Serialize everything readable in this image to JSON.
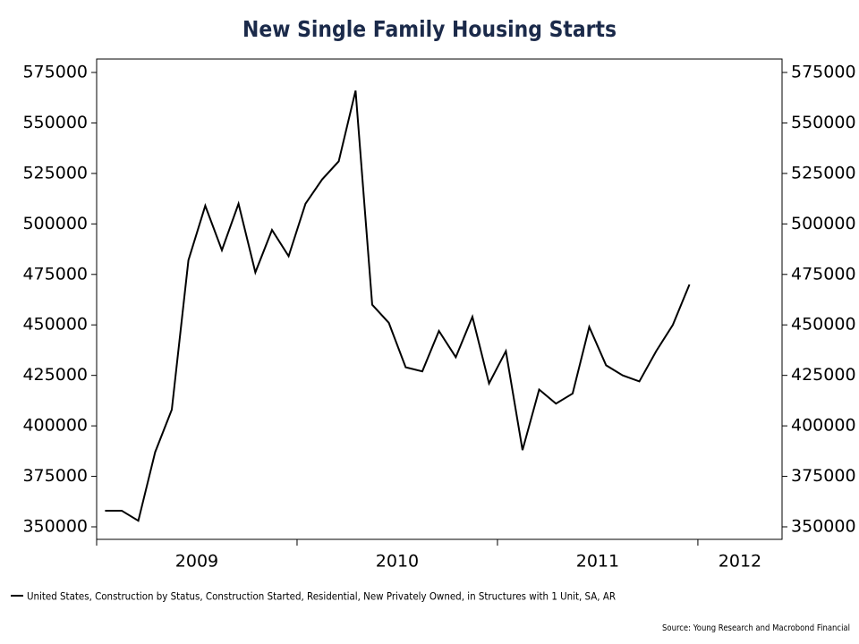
{
  "chart_data": {
    "type": "line",
    "title": "New Single Family Housing Starts",
    "x": [
      2009.042,
      2009.125,
      2009.208,
      2009.292,
      2009.375,
      2009.458,
      2009.542,
      2009.625,
      2009.708,
      2009.792,
      2009.875,
      2009.958,
      2010.042,
      2010.125,
      2010.208,
      2010.292,
      2010.375,
      2010.458,
      2010.542,
      2010.625,
      2010.708,
      2010.792,
      2010.875,
      2010.958,
      2011.042,
      2011.125,
      2011.208,
      2011.292,
      2011.375,
      2011.458,
      2011.542,
      2011.625,
      2011.708,
      2011.792,
      2011.875,
      2011.958
    ],
    "series": [
      {
        "name": "United States, Construction by Status, Construction Started, Residential, New Privately Owned, in Structures with 1 Unit, SA, AR",
        "color": "#000000",
        "values": [
          358000,
          358000,
          353000,
          387000,
          408000,
          482000,
          509000,
          487000,
          510000,
          476000,
          497000,
          484000,
          510000,
          522000,
          531000,
          566000,
          460000,
          451000,
          429000,
          427000,
          447000,
          434000,
          454000,
          421000,
          437000,
          388000,
          418000,
          411000,
          416000,
          449000,
          430000,
          425000,
          422000,
          437000,
          450000,
          470000
        ]
      }
    ],
    "xlim": [
      2009,
      2012.42
    ],
    "xticks": [
      2009,
      2010,
      2011,
      2012
    ],
    "ylim": [
      343800,
      581650
    ],
    "yticks": [
      350000,
      375000,
      400000,
      425000,
      450000,
      475000,
      500000,
      525000,
      550000,
      575000
    ],
    "y2lim": [
      343800,
      581650
    ],
    "y2ticks": [
      350000,
      375000,
      400000,
      425000,
      450000,
      475000,
      500000,
      525000,
      550000,
      575000
    ],
    "source": "Source: Young Research and Macrobond Financial"
  }
}
